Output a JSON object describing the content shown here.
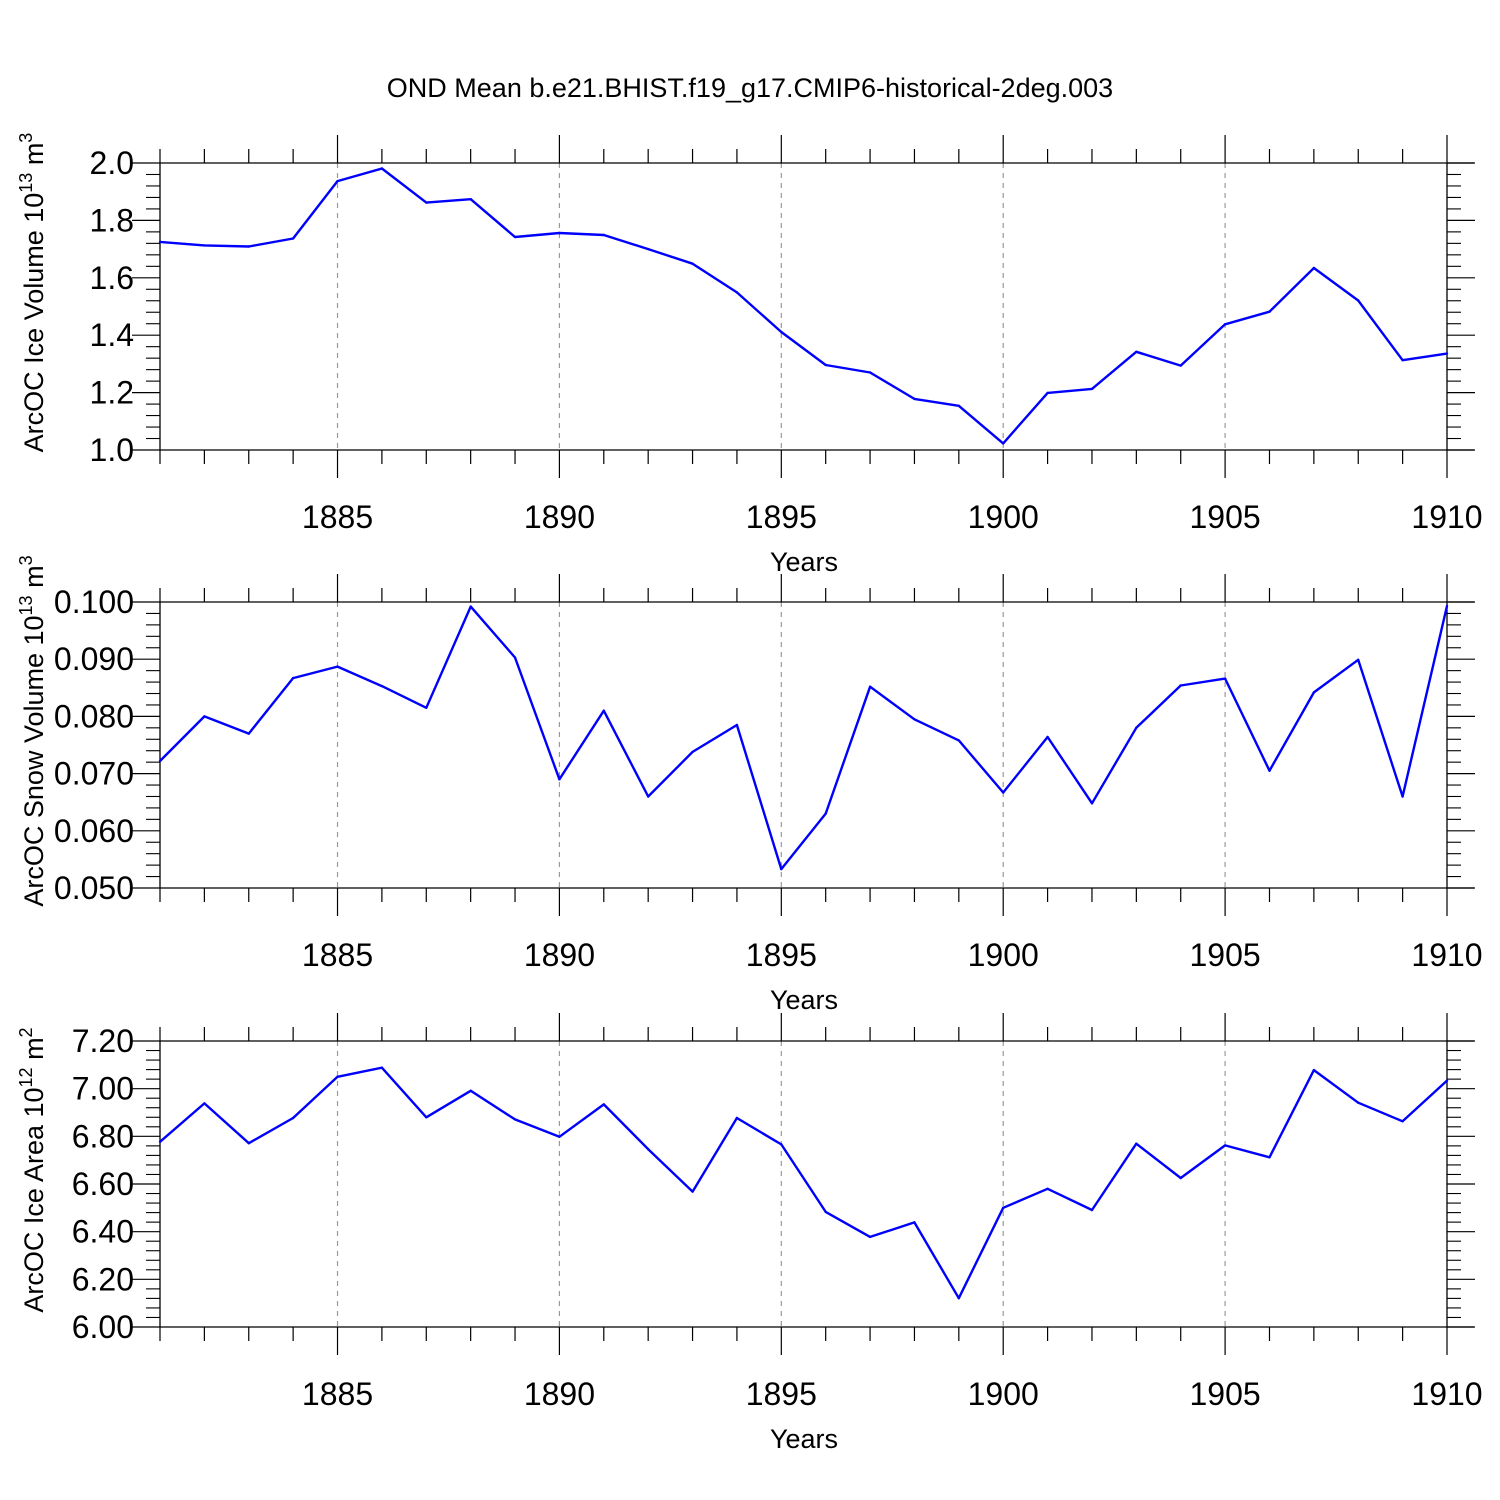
{
  "title": "OND Mean b.e21.BHIST.f19_g17.CMIP6-historical-2deg.003",
  "colors": {
    "line": "#0000ff",
    "axis": "#000000",
    "grid": "#999999"
  },
  "chart_data": [
    {
      "type": "line",
      "xlabel": "Years",
      "ylabel": "ArcOC Ice Volume 10",
      "ylabel_exp": "13",
      "ylabel_unit": " m",
      "ylabel_unit_exp": "3",
      "xlim": [
        1881,
        1910
      ],
      "ylim": [
        1.0,
        2.0
      ],
      "yticks": [
        1.0,
        1.2,
        1.4,
        1.6,
        1.8,
        2.0
      ],
      "ytick_labels": [
        "1.0",
        "1.2",
        "1.4",
        "1.6",
        "1.8",
        "2.0"
      ],
      "xticks": [
        1885,
        1890,
        1895,
        1900,
        1905,
        1910
      ],
      "xtick_labels": [
        "1885",
        "1890",
        "1895",
        "1900",
        "1905",
        "1910"
      ],
      "x": [
        1881,
        1882,
        1883,
        1884,
        1885,
        1886,
        1887,
        1888,
        1889,
        1890,
        1891,
        1892,
        1893,
        1894,
        1895,
        1896,
        1897,
        1898,
        1899,
        1900,
        1901,
        1902,
        1903,
        1904,
        1905,
        1906,
        1907,
        1908,
        1909,
        1910
      ],
      "values": [
        1.725,
        1.713,
        1.709,
        1.737,
        1.937,
        1.981,
        1.862,
        1.874,
        1.742,
        1.756,
        1.749,
        1.7,
        1.649,
        1.549,
        1.411,
        1.296,
        1.27,
        1.178,
        1.154,
        1.023,
        1.199,
        1.213,
        1.342,
        1.294,
        1.438,
        1.482,
        1.634,
        1.521,
        1.313,
        1.336
      ]
    },
    {
      "type": "line",
      "xlabel": "Years",
      "ylabel": "ArcOC Snow Volume 10",
      "ylabel_exp": "13",
      "ylabel_unit": " m",
      "ylabel_unit_exp": "3",
      "xlim": [
        1881,
        1910
      ],
      "ylim": [
        0.05,
        0.1
      ],
      "yticks": [
        0.05,
        0.06,
        0.07,
        0.08,
        0.09,
        0.1
      ],
      "ytick_labels": [
        "0.050",
        "0.060",
        "0.070",
        "0.080",
        "0.090",
        "0.100"
      ],
      "xticks": [
        1885,
        1890,
        1895,
        1900,
        1905,
        1910
      ],
      "xtick_labels": [
        "1885",
        "1890",
        "1895",
        "1900",
        "1905",
        "1910"
      ],
      "x": [
        1881,
        1882,
        1883,
        1884,
        1885,
        1886,
        1887,
        1888,
        1889,
        1890,
        1891,
        1892,
        1893,
        1894,
        1895,
        1896,
        1897,
        1898,
        1899,
        1900,
        1901,
        1902,
        1903,
        1904,
        1905,
        1906,
        1907,
        1908,
        1909,
        1910
      ],
      "values": [
        0.0722,
        0.08,
        0.077,
        0.0867,
        0.0887,
        0.0853,
        0.0815,
        0.0992,
        0.0903,
        0.069,
        0.081,
        0.066,
        0.0738,
        0.0785,
        0.0533,
        0.063,
        0.0852,
        0.0795,
        0.0758,
        0.0667,
        0.0764,
        0.0648,
        0.078,
        0.0854,
        0.0866,
        0.0705,
        0.0842,
        0.0899,
        0.066,
        0.0993
      ]
    },
    {
      "type": "line",
      "xlabel": "Years",
      "ylabel": "ArcOC Ice Area 10",
      "ylabel_exp": "12",
      "ylabel_unit": " m",
      "ylabel_unit_exp": "2",
      "xlim": [
        1881,
        1910
      ],
      "ylim": [
        6.0,
        7.2
      ],
      "yticks": [
        6.0,
        6.2,
        6.4,
        6.6,
        6.8,
        7.0,
        7.2
      ],
      "ytick_labels": [
        "6.00",
        "6.20",
        "6.40",
        "6.60",
        "6.80",
        "7.00",
        "7.20"
      ],
      "xticks": [
        1885,
        1890,
        1895,
        1900,
        1905,
        1910
      ],
      "xtick_labels": [
        "1885",
        "1890",
        "1895",
        "1900",
        "1905",
        "1910"
      ],
      "x": [
        1881,
        1882,
        1883,
        1884,
        1885,
        1886,
        1887,
        1888,
        1889,
        1890,
        1891,
        1892,
        1893,
        1894,
        1895,
        1896,
        1897,
        1898,
        1899,
        1900,
        1901,
        1902,
        1903,
        1904,
        1905,
        1906,
        1907,
        1908,
        1909,
        1910
      ],
      "values": [
        6.777,
        6.938,
        6.771,
        6.877,
        7.05,
        7.088,
        6.88,
        6.991,
        6.871,
        6.798,
        6.934,
        6.746,
        6.568,
        6.877,
        6.766,
        6.483,
        6.378,
        6.439,
        6.121,
        6.5,
        6.58,
        6.491,
        6.769,
        6.625,
        6.762,
        6.712,
        7.078,
        6.941,
        6.863,
        7.034
      ]
    }
  ]
}
